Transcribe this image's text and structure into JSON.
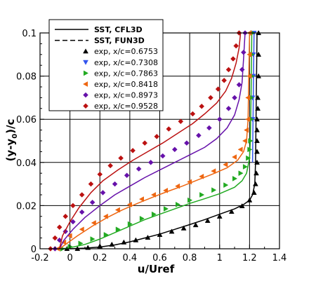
{
  "chart_data": {
    "type": "line",
    "title": "",
    "xlabel": "u/Uref",
    "ylabel": "(y-y0)/c",
    "xlim": [
      -0.2,
      1.4
    ],
    "ylim": [
      0,
      0.1
    ],
    "xticks": [
      "-0.2",
      "-0.1",
      "0",
      "0.1",
      "0.2",
      "0.3",
      "0.4",
      "0.5",
      "0.6",
      "0.7",
      "0.8",
      "0.9",
      "1",
      "1.1",
      "1.2",
      "1.3",
      "1.4"
    ],
    "xtick_values": [
      -0.2,
      -0.1,
      0,
      0.1,
      0.2,
      0.3,
      0.4,
      0.5,
      0.6,
      0.7,
      0.8,
      0.9,
      1.0,
      1.1,
      1.2,
      1.3,
      1.4
    ],
    "xtick_labels": [
      "-0.2",
      "0",
      "0.2",
      "0.4",
      "0.6",
      "0.8",
      "1",
      "1.2",
      "1.4"
    ],
    "xtick_label_values": [
      -0.2,
      0,
      0.2,
      0.4,
      0.6,
      0.8,
      1.0,
      1.2,
      1.4
    ],
    "ytick_labels": [
      "0",
      "0.02",
      "0.04",
      "0.06",
      "0.08",
      "0.1"
    ],
    "ytick_label_values": [
      0,
      0.02,
      0.04,
      0.06,
      0.08,
      0.1
    ],
    "grid": true,
    "legend_placement": "top-left",
    "legend": [
      {
        "label": "SST, CFL3D",
        "style": "solid"
      },
      {
        "label": "SST, FUN3D",
        "style": "dashed"
      },
      {
        "label": "exp, x/c=0.6753",
        "marker": "triangle-up",
        "color": "#000000"
      },
      {
        "label": "exp, x/c=0.7308",
        "marker": "triangle-down",
        "color": "#3355ee"
      },
      {
        "label": "exp, x/c=0.7863",
        "marker": "triangle-right",
        "color": "#22aa22"
      },
      {
        "label": "exp, x/c=0.8418",
        "marker": "triangle-left",
        "color": "#ee6611"
      },
      {
        "label": "exp, x/c=0.8973",
        "marker": "diamond",
        "color": "#6611aa"
      },
      {
        "label": "exp, x/c=0.9528",
        "marker": "diamond",
        "color": "#bb1111"
      }
    ],
    "series": [
      {
        "name": "x/c=0.6753",
        "color": "#000000",
        "marker": "triangle-up",
        "cfd_u": [
          0.0,
          0.1,
          0.2,
          0.3,
          0.4,
          0.5,
          0.6,
          0.7,
          0.8,
          0.9,
          1.0,
          1.1,
          1.16,
          1.2,
          1.22,
          1.235,
          1.24,
          1.245,
          1.25
        ],
        "cfd_y": [
          0.0,
          0.0003,
          0.0008,
          0.0018,
          0.0032,
          0.005,
          0.0068,
          0.009,
          0.0112,
          0.0135,
          0.016,
          0.0185,
          0.0205,
          0.0225,
          0.025,
          0.03,
          0.04,
          0.07,
          0.1
        ],
        "exp_u": [
          -0.02,
          0.05,
          0.12,
          0.2,
          0.28,
          0.36,
          0.44,
          0.52,
          0.6,
          0.68,
          0.76,
          0.84,
          0.92,
          1.0,
          1.08,
          1.15,
          1.2,
          1.23,
          1.24,
          1.245,
          1.25,
          1.25,
          1.25,
          1.25,
          1.25,
          1.255,
          1.255,
          1.26,
          1.26,
          1.26
        ],
        "exp_y": [
          0.0,
          0.0,
          0.0005,
          0.0012,
          0.002,
          0.003,
          0.004,
          0.0052,
          0.0065,
          0.008,
          0.0095,
          0.011,
          0.013,
          0.015,
          0.0172,
          0.0198,
          0.0225,
          0.026,
          0.03,
          0.035,
          0.04,
          0.045,
          0.05,
          0.055,
          0.06,
          0.065,
          0.07,
          0.08,
          0.09,
          0.1
        ]
      },
      {
        "name": "x/c=0.7308",
        "color": "#3355ee",
        "marker": "triangle-down",
        "cfd_u": [
          1.22,
          1.225,
          1.23
        ],
        "cfd_y": [
          0.04,
          0.07,
          0.1
        ],
        "exp_u": [
          1.22,
          1.22,
          1.225,
          1.225,
          1.23
        ],
        "exp_y": [
          0.06,
          0.07,
          0.08,
          0.09,
          0.1
        ]
      },
      {
        "name": "x/c=0.7863",
        "color": "#22aa22",
        "marker": "triangle-right",
        "cfd_u": [
          -0.05,
          0.0,
          0.1,
          0.2,
          0.3,
          0.4,
          0.5,
          0.6,
          0.7,
          0.8,
          0.9,
          1.0,
          1.1,
          1.15,
          1.18,
          1.2,
          1.205,
          1.21,
          1.215
        ],
        "cfd_y": [
          0.0,
          0.0005,
          0.002,
          0.0045,
          0.0075,
          0.0105,
          0.0135,
          0.016,
          0.0185,
          0.021,
          0.0232,
          0.0255,
          0.0285,
          0.0315,
          0.035,
          0.042,
          0.05,
          0.07,
          0.1
        ],
        "exp_u": [
          -0.05,
          0.0,
          0.07,
          0.15,
          0.24,
          0.32,
          0.4,
          0.48,
          0.56,
          0.64,
          0.72,
          0.8,
          0.88,
          0.96,
          1.04,
          1.1,
          1.14,
          1.17,
          1.19,
          1.2,
          1.205,
          1.21,
          1.21,
          1.215,
          1.215,
          1.22
        ],
        "exp_y": [
          0.0,
          0.001,
          0.0025,
          0.0045,
          0.0065,
          0.009,
          0.0115,
          0.014,
          0.016,
          0.0185,
          0.0205,
          0.0225,
          0.025,
          0.0272,
          0.0295,
          0.0325,
          0.035,
          0.038,
          0.042,
          0.046,
          0.05,
          0.06,
          0.07,
          0.08,
          0.09,
          0.1
        ]
      },
      {
        "name": "x/c=0.8418",
        "color": "#ee6611",
        "marker": "triangle-left",
        "cfd_u": [
          -0.07,
          -0.03,
          0.05,
          0.15,
          0.25,
          0.35,
          0.45,
          0.55,
          0.65,
          0.75,
          0.85,
          0.95,
          1.05,
          1.12,
          1.16,
          1.18,
          1.19,
          1.195,
          1.2
        ],
        "cfd_y": [
          0.0,
          0.002,
          0.006,
          0.0105,
          0.0145,
          0.018,
          0.021,
          0.0238,
          0.0265,
          0.029,
          0.0318,
          0.0345,
          0.0375,
          0.041,
          0.045,
          0.05,
          0.06,
          0.08,
          0.1
        ],
        "exp_u": [
          -0.08,
          -0.04,
          0.0,
          0.08,
          0.16,
          0.24,
          0.32,
          0.4,
          0.48,
          0.56,
          0.64,
          0.72,
          0.8,
          0.88,
          0.96,
          1.04,
          1.1,
          1.14,
          1.17,
          1.18,
          1.19,
          1.19,
          1.2,
          1.2,
          1.2
        ],
        "exp_y": [
          0.0,
          0.003,
          0.006,
          0.009,
          0.012,
          0.015,
          0.018,
          0.0205,
          0.023,
          0.025,
          0.027,
          0.029,
          0.031,
          0.0335,
          0.036,
          0.039,
          0.0425,
          0.046,
          0.05,
          0.055,
          0.06,
          0.07,
          0.08,
          0.09,
          0.1
        ]
      },
      {
        "name": "x/c=0.8973",
        "color": "#6611aa",
        "marker": "diamond",
        "cfd_u": [
          -0.07,
          -0.04,
          0.02,
          0.1,
          0.2,
          0.3,
          0.4,
          0.5,
          0.6,
          0.7,
          0.8,
          0.9,
          0.98,
          1.05,
          1.1,
          1.13,
          1.15,
          1.16,
          1.17
        ],
        "cfd_y": [
          0.0,
          0.004,
          0.009,
          0.0145,
          0.02,
          0.025,
          0.029,
          0.033,
          0.0365,
          0.04,
          0.0435,
          0.047,
          0.051,
          0.056,
          0.062,
          0.069,
          0.077,
          0.088,
          0.1
        ],
        "exp_u": [
          -0.1,
          -0.07,
          -0.03,
          0.02,
          0.08,
          0.15,
          0.22,
          0.3,
          0.38,
          0.46,
          0.54,
          0.62,
          0.7,
          0.78,
          0.86,
          0.93,
          1.0,
          1.06,
          1.1,
          1.13,
          1.15,
          1.16,
          1.17
        ],
        "exp_y": [
          0.0,
          0.004,
          0.008,
          0.0125,
          0.017,
          0.0215,
          0.026,
          0.03,
          0.034,
          0.037,
          0.04,
          0.043,
          0.046,
          0.049,
          0.0525,
          0.056,
          0.06,
          0.065,
          0.07,
          0.076,
          0.083,
          0.091,
          0.1
        ]
      },
      {
        "name": "x/c=0.9528",
        "color": "#bb1111",
        "marker": "diamond",
        "cfd_u": [
          -0.07,
          -0.05,
          0.0,
          0.06,
          0.14,
          0.22,
          0.32,
          0.42,
          0.52,
          0.62,
          0.72,
          0.82,
          0.9,
          0.98,
          1.04,
          1.08,
          1.11,
          1.13,
          1.14
        ],
        "cfd_y": [
          0.0,
          0.006,
          0.0125,
          0.019,
          0.026,
          0.0315,
          0.0365,
          0.041,
          0.045,
          0.049,
          0.0535,
          0.058,
          0.0625,
          0.0675,
          0.073,
          0.079,
          0.086,
          0.093,
          0.1
        ],
        "exp_u": [
          -0.13,
          -0.1,
          -0.07,
          -0.03,
          0.02,
          0.08,
          0.14,
          0.2,
          0.27,
          0.34,
          0.42,
          0.5,
          0.58,
          0.66,
          0.74,
          0.82,
          0.88,
          0.94,
          0.99,
          1.03,
          1.06,
          1.09,
          1.11,
          1.13
        ],
        "exp_y": [
          0.0,
          0.005,
          0.01,
          0.015,
          0.02,
          0.025,
          0.03,
          0.0345,
          0.0385,
          0.042,
          0.0455,
          0.049,
          0.052,
          0.0555,
          0.059,
          0.0625,
          0.066,
          0.07,
          0.074,
          0.078,
          0.083,
          0.088,
          0.094,
          0.1
        ]
      }
    ]
  }
}
